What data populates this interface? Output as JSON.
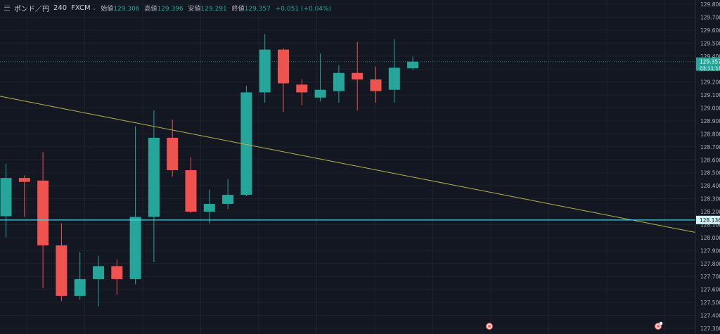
{
  "header": {
    "symbol": "ポンド／円",
    "interval": "240",
    "source": "FXCM",
    "dropdown_icon": "chevron-down-icon",
    "open_label": "始値",
    "open": "129.306",
    "high_label": "高値",
    "high": "129.396",
    "low_label": "安値",
    "low": "129.291",
    "close_label": "終値",
    "close": "129.357",
    "change": "+0.051 (+0.04%)"
  },
  "price_labels": {
    "last_price": "129.357",
    "countdown": "03:11:18",
    "hline_price": "128.136"
  },
  "colors": {
    "background": "#131722",
    "grid": "#1e222d",
    "up": "#26a69a",
    "down": "#ef5350",
    "trendline": "#b5b54a",
    "hline": "#4dd0e1",
    "last_price_line": "#26a69a",
    "axis_text": "#b2b5be"
  },
  "chart_data": {
    "type": "candlestick",
    "y_ticks": [
      "129.800",
      "129.700",
      "129.600",
      "129.500",
      "129.400",
      "129.300",
      "129.200",
      "129.100",
      "129.000",
      "128.900",
      "128.800",
      "128.700",
      "128.600",
      "128.500",
      "128.400",
      "128.300",
      "128.200",
      "128.100",
      "128.000",
      "127.900",
      "127.800",
      "127.700",
      "127.600",
      "127.500",
      "127.400",
      "127.300"
    ],
    "ylim": [
      127.3,
      129.8
    ],
    "candles": [
      {
        "o": 128.165,
        "h": 128.57,
        "l": 128.0,
        "c": 128.46
      },
      {
        "o": 128.46,
        "h": 128.48,
        "l": 128.16,
        "c": 128.43
      },
      {
        "o": 128.44,
        "h": 128.66,
        "l": 127.61,
        "c": 127.94
      },
      {
        "o": 127.94,
        "h": 128.11,
        "l": 127.51,
        "c": 127.55
      },
      {
        "o": 127.55,
        "h": 127.89,
        "l": 127.52,
        "c": 127.68
      },
      {
        "o": 127.68,
        "h": 127.86,
        "l": 127.47,
        "c": 127.78
      },
      {
        "o": 127.78,
        "h": 127.83,
        "l": 127.56,
        "c": 127.68
      },
      {
        "o": 127.68,
        "h": 128.86,
        "l": 127.64,
        "c": 128.16
      },
      {
        "o": 128.16,
        "h": 128.98,
        "l": 127.81,
        "c": 128.77
      },
      {
        "o": 128.77,
        "h": 128.91,
        "l": 128.47,
        "c": 128.52
      },
      {
        "o": 128.52,
        "h": 128.62,
        "l": 128.19,
        "c": 128.2
      },
      {
        "o": 128.2,
        "h": 128.37,
        "l": 128.11,
        "c": 128.26
      },
      {
        "o": 128.26,
        "h": 128.45,
        "l": 128.22,
        "c": 128.33
      },
      {
        "o": 128.33,
        "h": 129.17,
        "l": 128.32,
        "c": 129.12
      },
      {
        "o": 129.12,
        "h": 129.57,
        "l": 129.04,
        "c": 129.45
      },
      {
        "o": 129.45,
        "h": 129.46,
        "l": 128.97,
        "c": 129.19
      },
      {
        "o": 129.18,
        "h": 129.22,
        "l": 129.02,
        "c": 129.12
      },
      {
        "o": 129.08,
        "h": 129.42,
        "l": 129.05,
        "c": 129.14
      },
      {
        "o": 129.13,
        "h": 129.33,
        "l": 129.04,
        "c": 129.27
      },
      {
        "o": 129.27,
        "h": 129.51,
        "l": 128.98,
        "c": 129.22
      },
      {
        "o": 129.22,
        "h": 129.32,
        "l": 129.04,
        "c": 129.13
      },
      {
        "o": 129.14,
        "h": 129.53,
        "l": 129.04,
        "c": 129.31
      },
      {
        "o": 129.306,
        "h": 129.396,
        "l": 129.291,
        "c": 129.357
      }
    ],
    "horizontal_line": 128.136,
    "last_price": 129.357,
    "trendline": {
      "start": 129.09,
      "end": 128.04
    }
  }
}
